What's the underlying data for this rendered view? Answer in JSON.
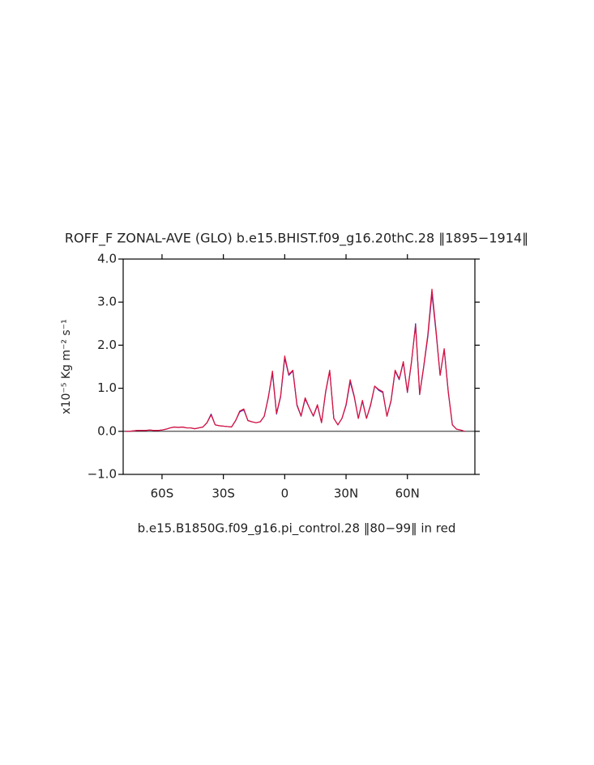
{
  "chart_data": {
    "type": "line",
    "title": "ROFF_F ZONAL-AVE (GLO) b.e15.BHIST.f09_g16.20thC.28 ‖1895−1914‖",
    "subtitle": "b.e15.B1850G.f09_g16.pi_control.28 ‖80−99‖ in red",
    "y_label": "x10⁻⁵ Kg m⁻² s⁻¹",
    "x": [
      -78,
      -76,
      -74,
      -72,
      -70,
      -68,
      -66,
      -64,
      -62,
      -60,
      -58,
      -56,
      -54,
      -52,
      -50,
      -48,
      -46,
      -44,
      -42,
      -40,
      -38,
      -36,
      -34,
      -32,
      -30,
      -28,
      -26,
      -24,
      -22,
      -20,
      -18,
      -16,
      -14,
      -12,
      -10,
      -8,
      -6,
      -4,
      -2,
      0,
      2,
      4,
      6,
      8,
      10,
      12,
      14,
      16,
      18,
      20,
      22,
      24,
      26,
      28,
      30,
      32,
      34,
      36,
      38,
      40,
      42,
      44,
      46,
      48,
      50,
      52,
      54,
      56,
      58,
      60,
      62,
      64,
      66,
      68,
      70,
      72,
      74,
      76,
      78,
      80,
      82,
      84,
      86,
      88
    ],
    "series": [
      {
        "name": "b.e15.BHIST.f09_g16.20thC.28",
        "color": "#3a2aa8",
        "values": [
          0,
          0,
          0.01,
          0.02,
          0.02,
          0.02,
          0.03,
          0.02,
          0.02,
          0.03,
          0.05,
          0.08,
          0.1,
          0.09,
          0.1,
          0.08,
          0.08,
          0.06,
          0.08,
          0.1,
          0.2,
          0.4,
          0.15,
          0.13,
          0.12,
          0.11,
          0.1,
          0.25,
          0.45,
          0.5,
          0.25,
          0.22,
          0.2,
          0.22,
          0.35,
          0.8,
          1.35,
          0.4,
          0.8,
          1.7,
          1.3,
          1.4,
          0.6,
          0.35,
          0.75,
          0.55,
          0.35,
          0.6,
          0.2,
          0.9,
          1.4,
          0.3,
          0.15,
          0.3,
          0.6,
          1.15,
          0.8,
          0.3,
          0.7,
          0.3,
          0.6,
          1.05,
          0.95,
          0.9,
          0.35,
          0.7,
          1.4,
          1.2,
          1.6,
          0.9,
          1.6,
          2.5,
          0.85,
          1.5,
          2.2,
          3.2,
          2.3,
          1.3,
          1.9,
          0.9,
          0.15,
          0.05,
          0.03,
          0
        ]
      },
      {
        "name": "b.e15.B1850G.f09_g16.pi_control.28",
        "color": "#e0103a",
        "values": [
          0,
          0,
          0.01,
          0.02,
          0.02,
          0.02,
          0.03,
          0.02,
          0.02,
          0.03,
          0.05,
          0.08,
          0.1,
          0.09,
          0.1,
          0.08,
          0.08,
          0.06,
          0.08,
          0.1,
          0.2,
          0.38,
          0.15,
          0.13,
          0.12,
          0.11,
          0.1,
          0.25,
          0.47,
          0.52,
          0.25,
          0.22,
          0.2,
          0.22,
          0.35,
          0.78,
          1.4,
          0.42,
          0.82,
          1.75,
          1.32,
          1.42,
          0.62,
          0.36,
          0.78,
          0.55,
          0.36,
          0.62,
          0.2,
          0.92,
          1.42,
          0.3,
          0.15,
          0.3,
          0.62,
          1.2,
          0.82,
          0.3,
          0.72,
          0.3,
          0.62,
          1.05,
          0.97,
          0.92,
          0.35,
          0.72,
          1.42,
          1.22,
          1.62,
          0.92,
          1.62,
          2.45,
          0.87,
          1.52,
          2.25,
          3.3,
          2.35,
          1.3,
          1.92,
          0.92,
          0.15,
          0.05,
          0.03,
          0
        ]
      }
    ],
    "xlim": [
      -79,
      93
    ],
    "xticks": [
      {
        "value": -60,
        "label": "60S"
      },
      {
        "value": -30,
        "label": "30S"
      },
      0,
      {
        "value": 30,
        "label": "30N"
      },
      {
        "value": 60,
        "label": "60N"
      }
    ],
    "ylim": [
      -1,
      4
    ],
    "yticks": [
      {
        "value": -1,
        "label": "−1.0"
      },
      {
        "value": 0,
        "label": "0.0"
      },
      {
        "value": 1,
        "label": "1.0"
      },
      {
        "value": 2,
        "label": "2.0"
      },
      {
        "value": 3,
        "label": "3.0"
      },
      {
        "value": 4,
        "label": "4.0"
      }
    ],
    "ref_line": 0
  }
}
